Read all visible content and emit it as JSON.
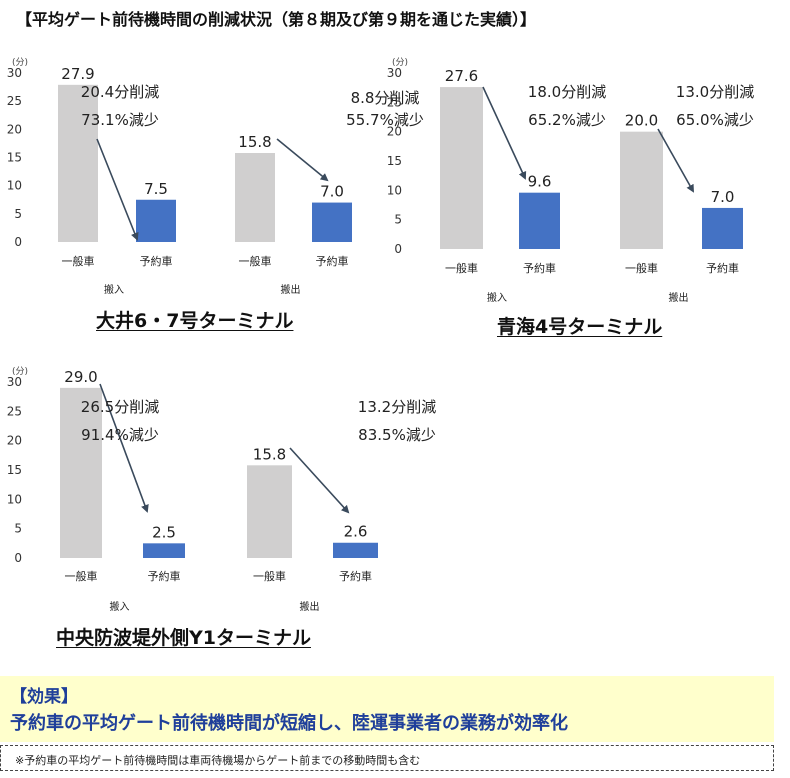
{
  "title": "【平均ゲート前待機時間の削減状況（第８期及び第９期を通じた実績）】",
  "terminals": [
    {
      "name": "大井6・7号ターミナル"
    },
    {
      "name": "青海4号ターミナル"
    },
    {
      "name": "中央防波堤外側Y1ターミナル"
    }
  ],
  "chart_data": [
    {
      "type": "bar",
      "unit": "(分)",
      "ylim": [
        0,
        30
      ],
      "yticks": [
        0,
        5,
        10,
        15,
        20,
        25,
        30
      ],
      "categories": [
        "一般車",
        "予約車"
      ],
      "values": [
        27.9,
        7.5
      ],
      "xlabel": "搬入",
      "annotation": [
        "20.4分削減",
        "73.1%減少"
      ]
    },
    {
      "type": "bar",
      "ylim": [
        0,
        30
      ],
      "categories": [
        "一般車",
        "予約車"
      ],
      "values": [
        15.8,
        7.0
      ],
      "xlabel": "搬出",
      "annotation": [
        "8.8分削減",
        "55.7%減少"
      ]
    },
    {
      "type": "bar",
      "unit": "(分)",
      "ylim": [
        0,
        30
      ],
      "yticks": [
        0,
        5,
        10,
        15,
        20,
        25,
        30
      ],
      "categories": [
        "一般車",
        "予約車"
      ],
      "values": [
        27.6,
        9.6
      ],
      "xlabel": "搬入",
      "annotation": [
        "18.0分削減",
        "65.2%減少"
      ]
    },
    {
      "type": "bar",
      "ylim": [
        0,
        30
      ],
      "categories": [
        "一般車",
        "予約車"
      ],
      "values": [
        20.0,
        7.0
      ],
      "xlabel": "搬出",
      "annotation": [
        "13.0分削減",
        "65.0%減少"
      ]
    },
    {
      "type": "bar",
      "unit": "(分)",
      "ylim": [
        0,
        30
      ],
      "yticks": [
        0,
        5,
        10,
        15,
        20,
        25,
        30
      ],
      "categories": [
        "一般車",
        "予約車"
      ],
      "values": [
        29.0,
        2.5
      ],
      "xlabel": "搬入",
      "annotation": [
        "26.5分削減",
        "91.4%減少"
      ]
    },
    {
      "type": "bar",
      "ylim": [
        0,
        30
      ],
      "categories": [
        "一般車",
        "予約車"
      ],
      "values": [
        15.8,
        2.6
      ],
      "xlabel": "搬出",
      "annotation": [
        "13.2分削減",
        "83.5%減少"
      ]
    }
  ],
  "colors": {
    "general_bar": "#d0cfcf",
    "reserved_bar": "#4472c4",
    "arrow": "#3a4a5c",
    "effect_bg": "#ffffcc",
    "effect_text": "#1f3f9a"
  },
  "effect": {
    "heading": "【効果】",
    "text": "予約車の平均ゲート前待機時間が短縮し、陸運事業者の業務が効率化"
  },
  "note": "※予約車の平均ゲート前待機時間は車両待機場からゲート前までの移動時間も含む"
}
